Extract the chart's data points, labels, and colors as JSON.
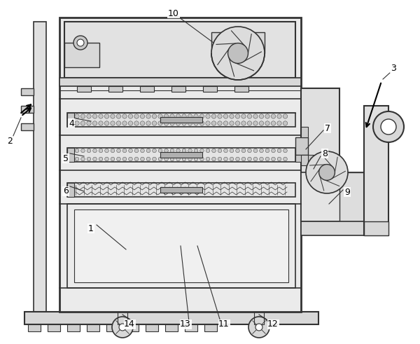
{
  "line_color": "#333333",
  "bg_color": "#ffffff",
  "fill_cabinet": "#e8e8e8",
  "fill_panel": "#d8d8d8",
  "fill_dark": "#aaaaaa",
  "fill_filter": "#d4d4d4",
  "fill_dot": "#c0c0c0"
}
